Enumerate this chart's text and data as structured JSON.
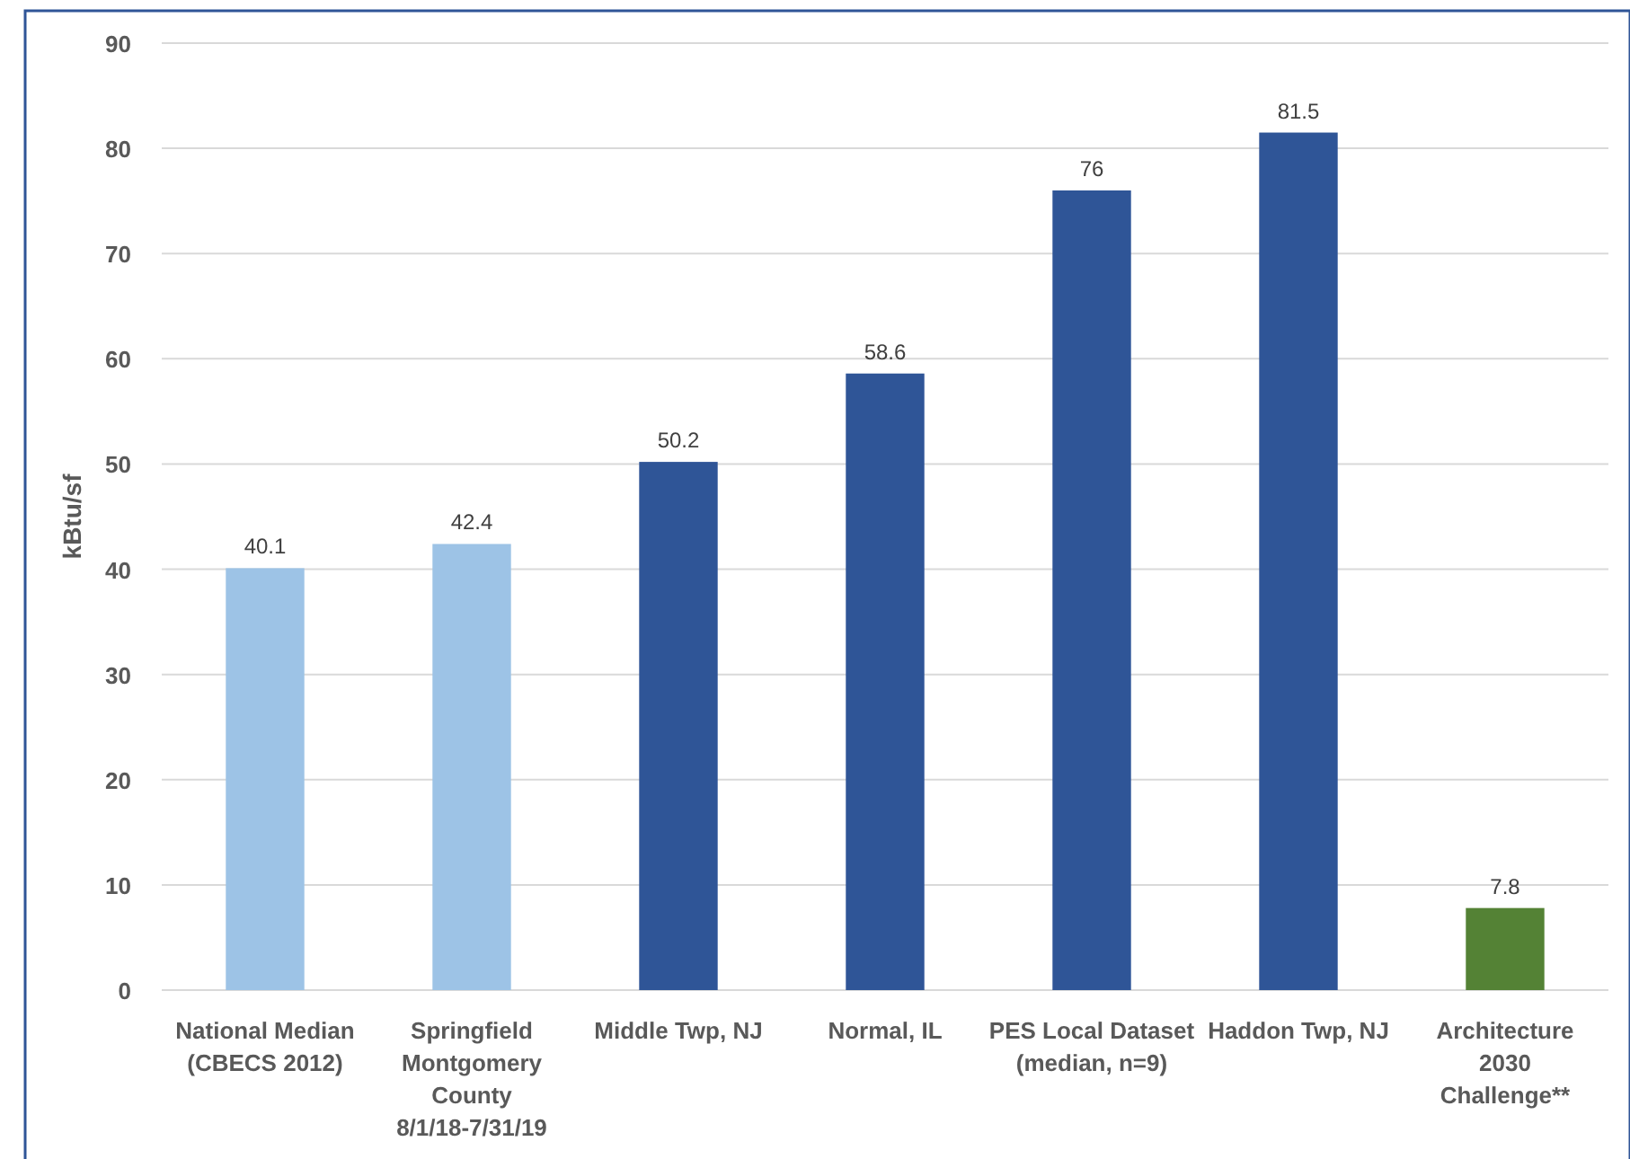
{
  "chart_data": {
    "type": "bar",
    "ylabel": "kBtu/sf",
    "categories": [
      "National Median\n(CBECS 2012)",
      "Springfield\nMontgomery\nCounty\n8/1/18-7/31/19",
      "Middle Twp, NJ",
      "Normal, IL",
      "PES Local Dataset\n(median, n=9)",
      "Haddon Twp, NJ",
      "Architecture\n2030\nChallenge**"
    ],
    "values": [
      40.1,
      42.4,
      50.2,
      58.6,
      76,
      81.5,
      7.8
    ],
    "colors": [
      "#9dc3e6",
      "#9dc3e6",
      "#2f5597",
      "#2f5597",
      "#2f5597",
      "#2f5597",
      "#548235"
    ],
    "ylim": [
      0,
      90
    ],
    "yticks": [
      0,
      10,
      20,
      30,
      40,
      50,
      60,
      70,
      80,
      90
    ],
    "grid": "y",
    "data_labels": true
  }
}
